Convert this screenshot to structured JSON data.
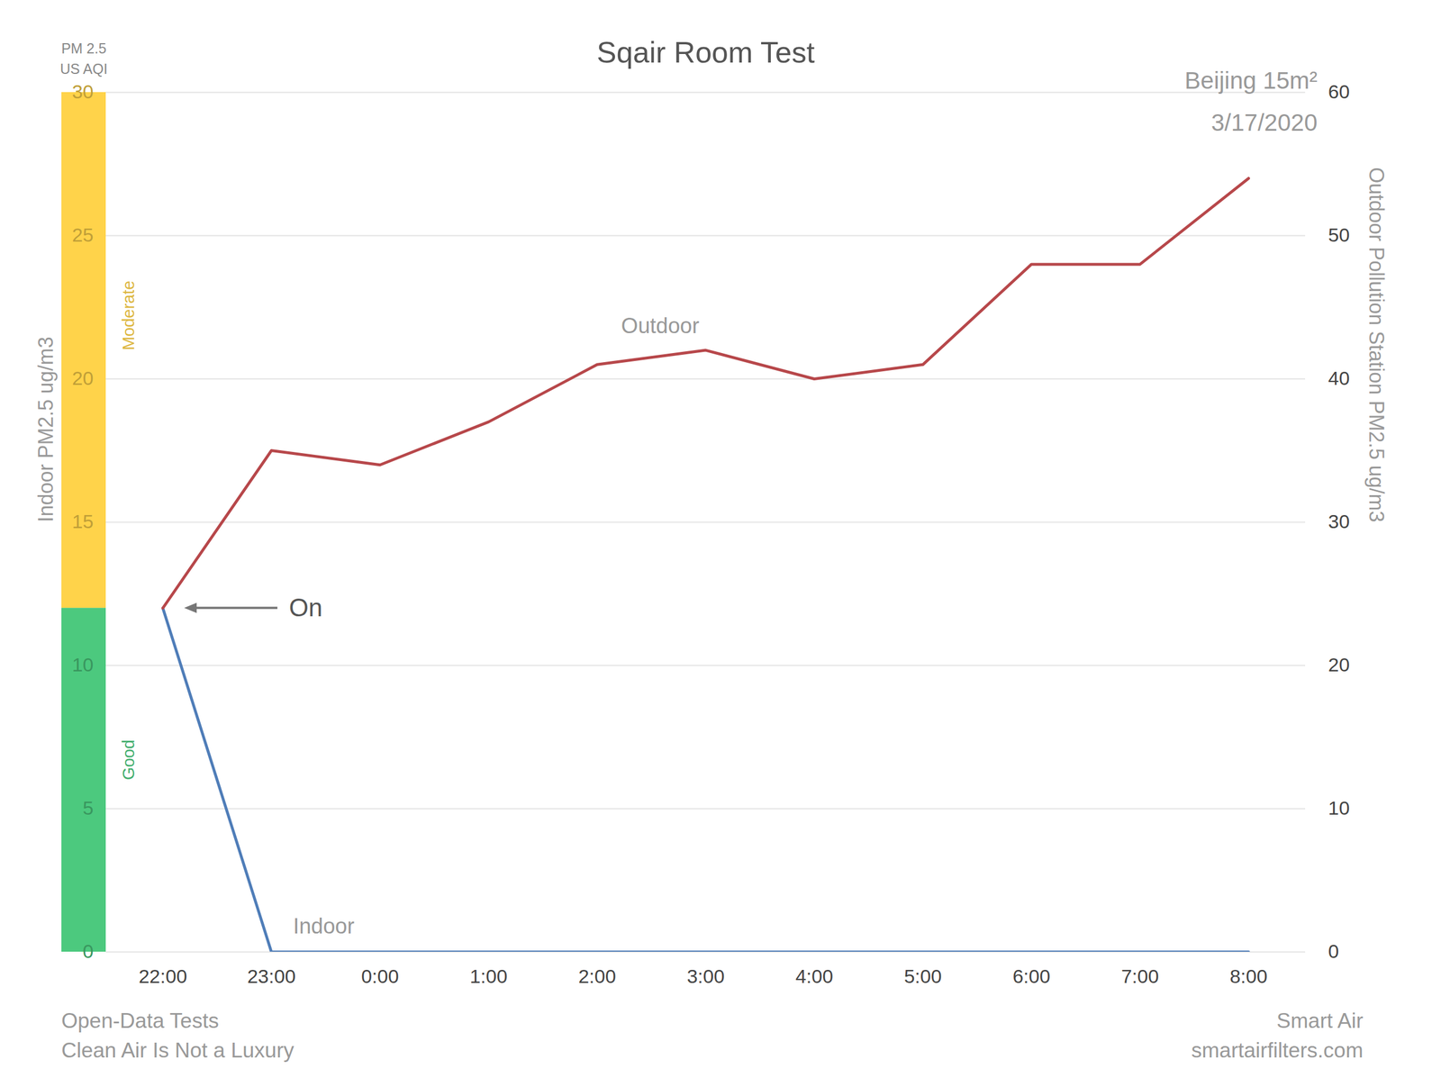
{
  "chart_data": {
    "type": "line",
    "title": "Sqair Room Test",
    "subtitle": "Beijing 15m²",
    "date": "3/17/2020",
    "y_label": "Indoor PM2.5 ug/m3",
    "y2_label": "Outdoor Pollution Station PM2.5 ug/m3",
    "categories": [
      "22:00",
      "23:00",
      "0:00",
      "1:00",
      "2:00",
      "3:00",
      "4:00",
      "5:00",
      "6:00",
      "7:00",
      "8:00"
    ],
    "series": [
      {
        "name": "Indoor",
        "color": "#4f7db8",
        "values": [
          12,
          0,
          0,
          0,
          0,
          0,
          0,
          0,
          0,
          0,
          0
        ]
      },
      {
        "name": "Outdoor",
        "color": "#b7474a",
        "axis": "y2",
        "values": [
          24,
          35,
          34,
          37,
          41,
          42,
          40,
          41,
          48,
          48,
          54
        ]
      }
    ],
    "ylim": [
      0,
      30
    ],
    "yticks": [
      0,
      5,
      10,
      15,
      20,
      25,
      30
    ],
    "y2lim": [
      0,
      60
    ],
    "y2ticks": [
      0,
      10,
      20,
      30,
      40,
      50,
      60
    ],
    "grid": true,
    "aqi_scale": {
      "title": [
        "PM 2.5",
        "US AQI"
      ],
      "bands": [
        {
          "label": "Good",
          "from": 0,
          "to": 12,
          "color": "#4cc97e"
        },
        {
          "label": "Moderate",
          "from": 12,
          "to": 30,
          "color": "#ffd34a"
        }
      ]
    },
    "annotations": [
      {
        "text": "On",
        "x": "22:00",
        "y": 12
      }
    ],
    "footer": {
      "left": [
        "Open-Data Tests",
        "Clean Air Is Not a Luxury"
      ],
      "right": [
        "Smart Air",
        "smartairfilters.com"
      ]
    }
  }
}
